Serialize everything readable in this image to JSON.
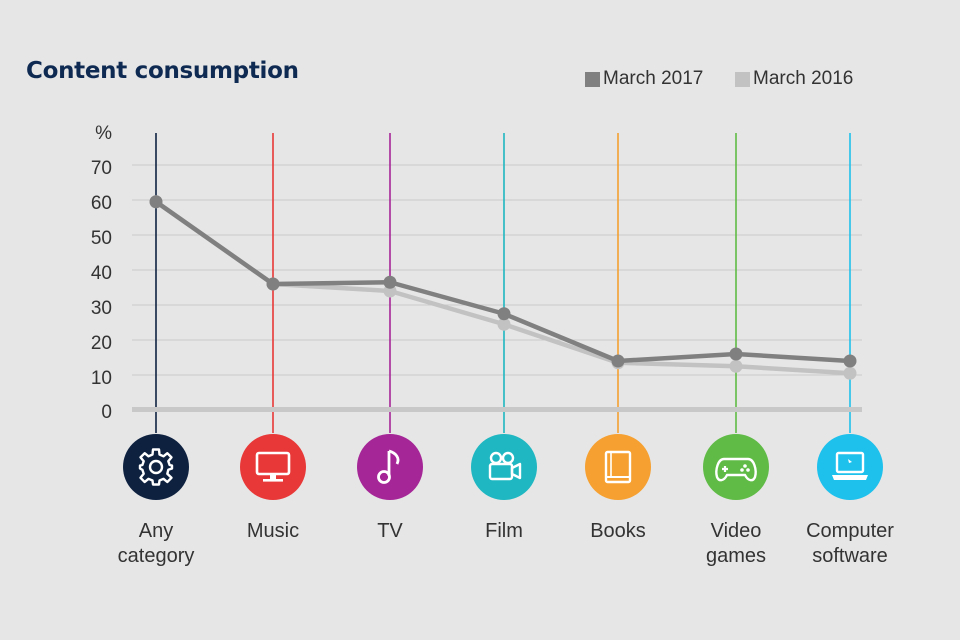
{
  "chart_data": {
    "type": "line",
    "title": "Content consumption",
    "y_unit_label": "%",
    "ylim": [
      0,
      78
    ],
    "yticks": [
      "70",
      "60",
      "50",
      "40",
      "30",
      "20",
      "10",
      "0"
    ],
    "categories": [
      {
        "lines": [
          "Any",
          "category"
        ],
        "icon": "gear-icon",
        "color": "#0e2240"
      },
      {
        "lines": [
          "Music"
        ],
        "icon": "monitor-icon",
        "color": "#e83838"
      },
      {
        "lines": [
          "TV"
        ],
        "icon": "music-note-icon",
        "color": "#a52697"
      },
      {
        "lines": [
          "Film"
        ],
        "icon": "video-camera-icon",
        "color": "#1fb7c1"
      },
      {
        "lines": [
          "Books"
        ],
        "icon": "book-icon",
        "color": "#f5a030"
      },
      {
        "lines": [
          "Video",
          "games"
        ],
        "icon": "gamepad-icon",
        "color": "#5fbb46"
      },
      {
        "lines": [
          "Computer",
          "software"
        ],
        "icon": "laptop-icon",
        "color": "#1ec0ec"
      }
    ],
    "series": [
      {
        "name": "March 2017",
        "color": "#808080",
        "values": [
          59.5,
          36,
          36.5,
          27.5,
          14,
          16,
          14
        ]
      },
      {
        "name": "March 2016",
        "color": "#c2c2c2",
        "values": [
          59.5,
          36,
          34,
          24.5,
          13.5,
          12.5,
          10.5
        ]
      }
    ]
  }
}
